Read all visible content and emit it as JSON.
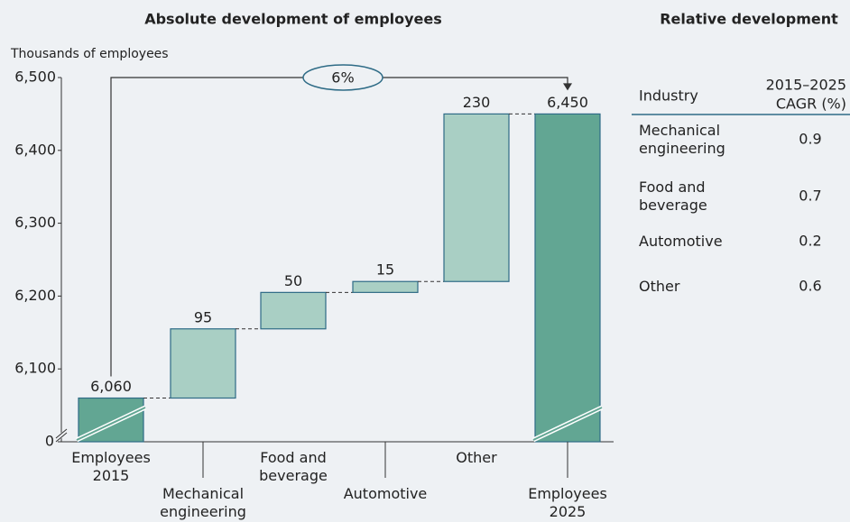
{
  "chart_data": {
    "type": "waterfall",
    "title": "Absolute development of employees",
    "y_axis_label": "Thousands of employees",
    "categories": [
      "Employees 2015",
      "Mechanical engineering",
      "Food and beverage",
      "Automotive",
      "Other",
      "Employees 2025"
    ],
    "values": [
      6060,
      95,
      50,
      15,
      230,
      6450
    ],
    "value_labels": [
      "6,060",
      "95",
      "50",
      "15",
      "230",
      "6,450"
    ],
    "totals": [
      true,
      false,
      false,
      false,
      false,
      true
    ],
    "total_color": "#62a693",
    "delta_color": "#a9cfc4",
    "edge_color": "#2e6b86",
    "ylim": [
      6000,
      6500
    ],
    "axis_break": true,
    "yticks": [
      0,
      {
        "value": 6100,
        "label": "6,100"
      },
      {
        "value": 6200,
        "label": "6,200"
      },
      {
        "value": 6300,
        "label": "6,300"
      },
      {
        "value": 6400,
        "label": "6,400"
      },
      {
        "value": 6500,
        "label": "6,500"
      }
    ],
    "annotation": "6%"
  },
  "table": {
    "title": "Relative development",
    "header": [
      "Industry",
      "2015–2025",
      "CAGR (%)"
    ],
    "rows": [
      [
        "Mechanical engineering",
        0.9
      ],
      [
        "Food and beverage",
        0.7
      ],
      [
        "Automotive",
        0.2
      ],
      [
        "Other",
        0.6
      ]
    ]
  }
}
